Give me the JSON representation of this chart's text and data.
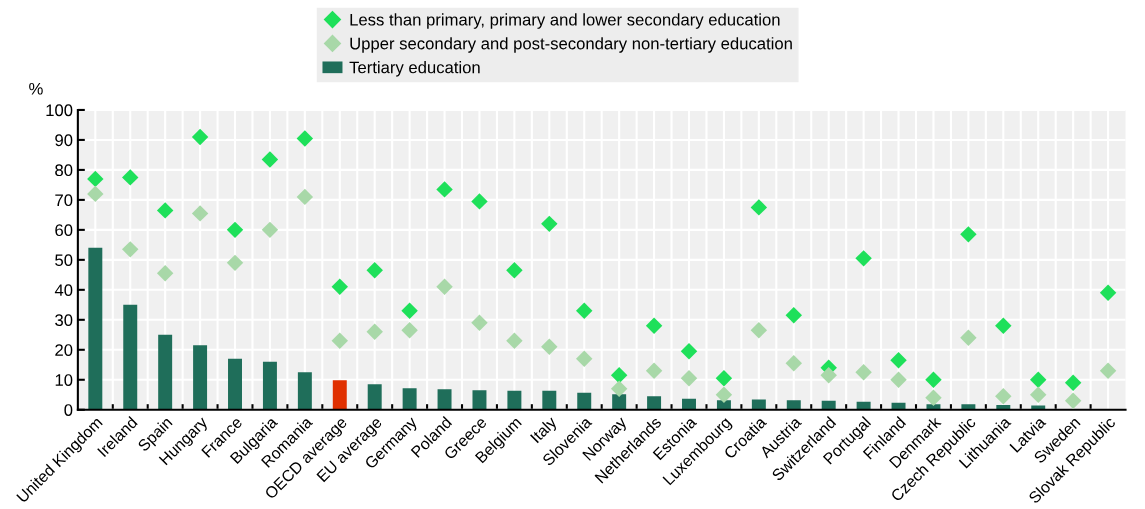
{
  "chart_data": {
    "type": "bar",
    "ylabel": "%",
    "categories": [
      "United Kingdom",
      "Ireland",
      "Spain",
      "Hungary",
      "France",
      "Bulgaria",
      "Romania",
      "OECD average",
      "EU average",
      "Germany",
      "Poland",
      "Greece",
      "Belgium",
      "Italy",
      "Slovenia",
      "Norway",
      "Netherlands",
      "Estonia",
      "Luxembourg",
      "Croatia",
      "Austria",
      "Switzerland",
      "Portugal",
      "Finland",
      "Denmark",
      "Czech Republic",
      "Lithuania",
      "Latvia",
      "Sweden",
      "Slovak Republic"
    ],
    "series": [
      {
        "name": "Less than primary, primary and lower secondary education",
        "type": "scatter",
        "color": "#1ee05a",
        "values": [
          77,
          77.5,
          66.5,
          91,
          60,
          83.5,
          90.5,
          41,
          46.5,
          33,
          73.5,
          69.5,
          46.5,
          62,
          33,
          11.5,
          28,
          19.5,
          10.5,
          67.5,
          31.5,
          14,
          50.5,
          16.5,
          10,
          58.5,
          28,
          10,
          9,
          39
        ]
      },
      {
        "name": "Upper secondary and post-secondary non-tertiary education",
        "type": "scatter",
        "color": "#a8d8a8",
        "values": [
          72,
          53.5,
          45.5,
          65.5,
          49,
          60,
          71,
          23,
          26,
          26.5,
          41,
          29,
          23,
          21,
          17,
          7,
          13,
          10.5,
          5,
          26.5,
          15.5,
          11.5,
          12.5,
          10,
          4,
          24,
          4.5,
          5,
          3,
          13
        ]
      },
      {
        "name": "Tertiary education",
        "color": "#1f6e5a",
        "colors": [
          "#1f6e5a",
          "#1f6e5a",
          "#1f6e5a",
          "#1f6e5a",
          "#1f6e5a",
          "#1f6e5a",
          "#1f6e5a",
          "#e03000",
          "#1f6e5a",
          "#1f6e5a",
          "#1f6e5a",
          "#1f6e5a",
          "#1f6e5a",
          "#1f6e5a",
          "#1f6e5a",
          "#1f6e5a",
          "#1f6e5a",
          "#1f6e5a",
          "#1f6e5a",
          "#1f6e5a",
          "#1f6e5a",
          "#1f6e5a",
          "#1f6e5a",
          "#1f6e5a",
          "#1f6e5a",
          "#1f6e5a",
          "#1f6e5a",
          "#1f6e5a",
          "#1f6e5a",
          "#1f6e5a"
        ],
        "values": [
          54,
          35,
          25,
          21.5,
          17,
          16,
          12.5,
          9.8,
          8.5,
          7.2,
          6.8,
          6.5,
          6.3,
          6.3,
          5.7,
          5.2,
          4.5,
          3.7,
          3.2,
          3.4,
          3.2,
          3.0,
          2.7,
          2.3,
          1.8,
          1.8,
          1.6,
          1.4,
          null,
          null
        ]
      }
    ],
    "ylim": [
      0,
      100
    ],
    "yticks": [
      0,
      10,
      20,
      30,
      40,
      50,
      60,
      70,
      80,
      90,
      100
    ],
    "grid": true,
    "legend": "top",
    "marker": "diamond"
  }
}
